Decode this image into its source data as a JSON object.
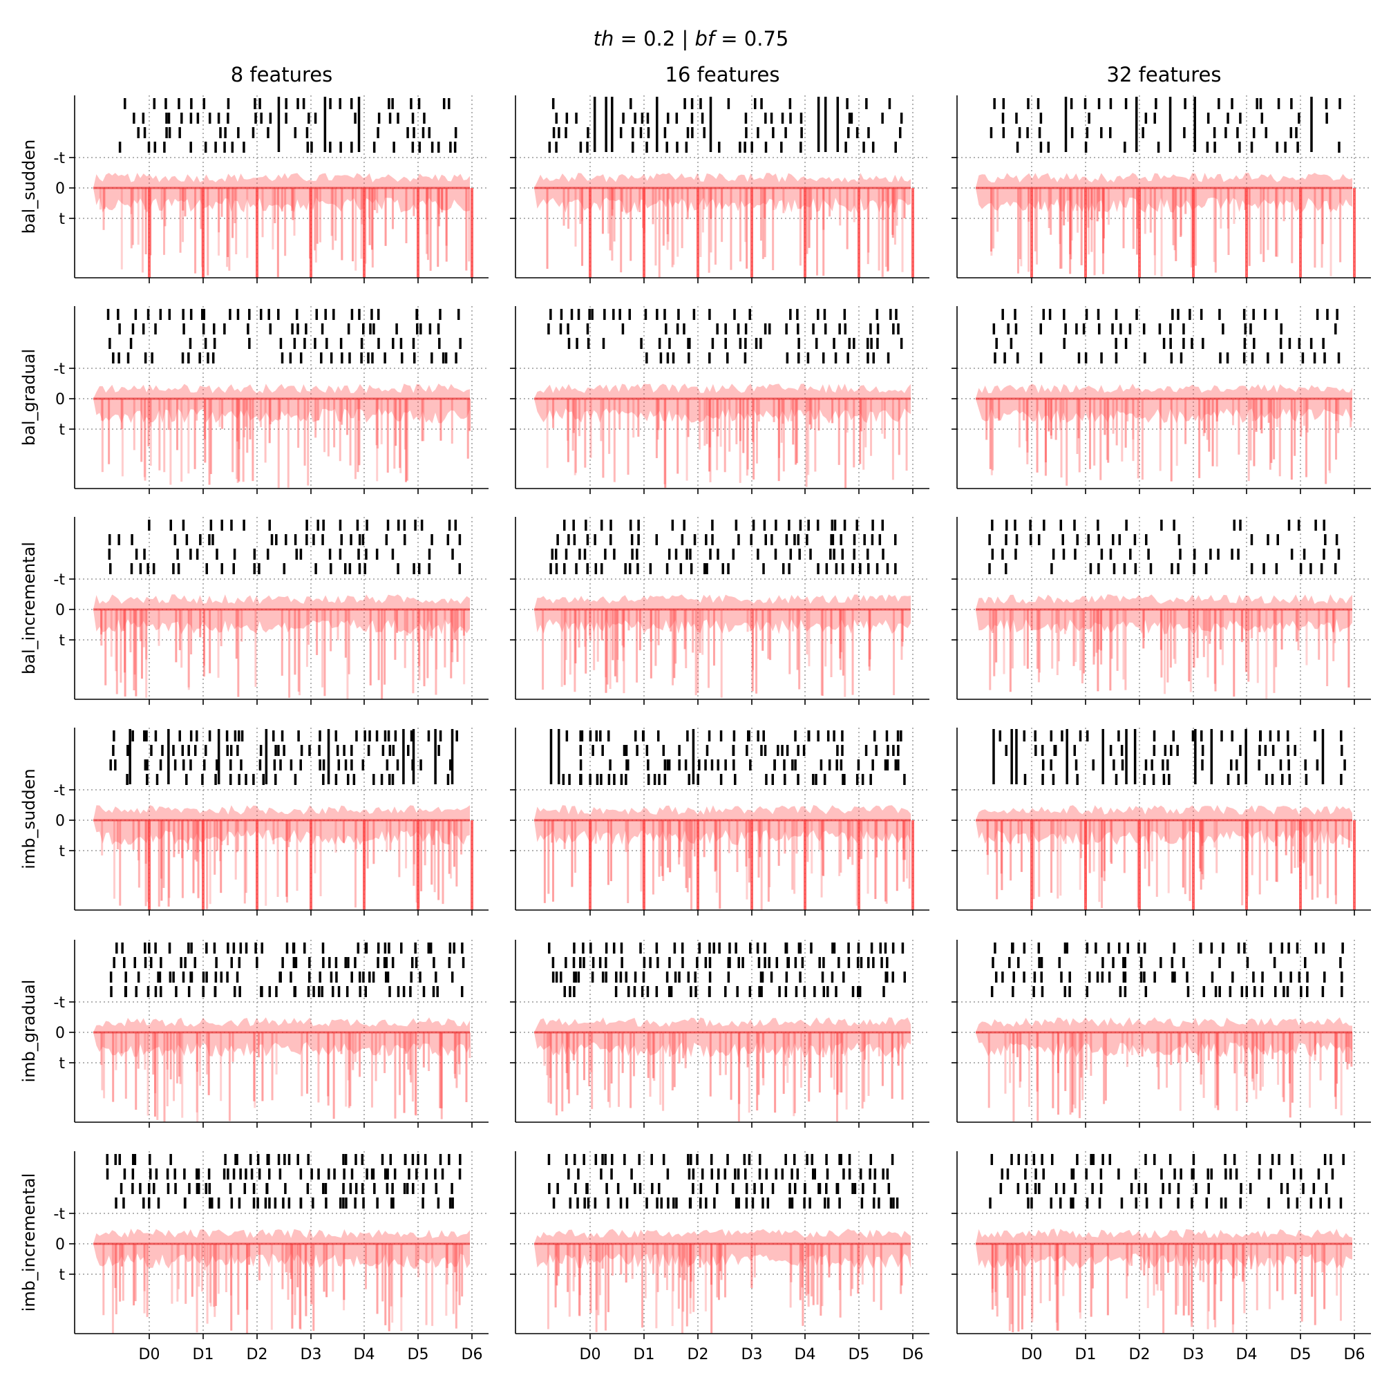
{
  "figure": {
    "supertitle_prefix_var1": "th",
    "supertitle_eq1": " = 0.2 | ",
    "supertitle_prefix_var2": "bf",
    "supertitle_eq2": " = 0.75"
  },
  "columns": [
    "8 features",
    "16 features",
    "32 features"
  ],
  "rows": [
    "bal_sudden",
    "bal_gradual",
    "bal_incremental",
    "imb_sudden",
    "imb_gradual",
    "imb_incremental"
  ],
  "y_tick_labels": [
    "-t",
    "0",
    "t"
  ],
  "x_tick_labels": [
    "D0",
    "D1",
    "D2",
    "D3",
    "D4",
    "D5",
    "D6"
  ],
  "colors": {
    "trace": "#ff4a4a",
    "raster": "#000000",
    "gridline": "#999999",
    "axis": "#000000"
  },
  "chart_data": {
    "type": "line",
    "layout": "grid 6 rows x 3 columns, shared x axis, shared y ticks",
    "threshold": 0.2,
    "bf": 0.75,
    "y_reference_lines": {
      "-t": -0.2,
      "0": 0,
      "t": 0.2
    },
    "x_categories": [
      "D0",
      "D1",
      "D2",
      "D3",
      "D4",
      "D5",
      "D6"
    ],
    "series_description": "many semi-transparent red error traces per panel with a black raster of detection events above the -t line",
    "grid": "dotted lines at each D tick and at -t, 0, t",
    "legend": "none"
  }
}
